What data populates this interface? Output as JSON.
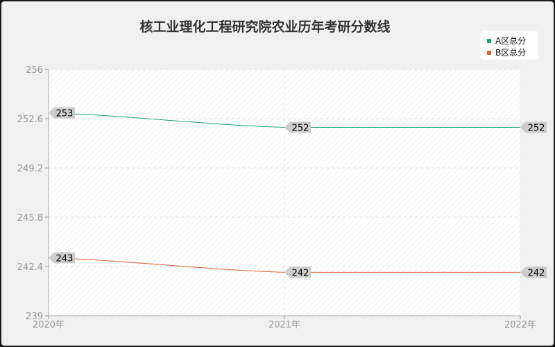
{
  "chart_data": {
    "type": "line",
    "title": "核工业理化工程研究院农业历年考研分数线",
    "categories": [
      "2020年",
      "2021年",
      "2022年"
    ],
    "series": [
      {
        "name": "A区总分",
        "values": [
          253,
          252,
          252
        ],
        "color": "#1aa57a"
      },
      {
        "name": "B区总分",
        "values": [
          243,
          242,
          242
        ],
        "color": "#e0622e"
      }
    ],
    "ylim": [
      239,
      256
    ],
    "yticks": [
      "239",
      "242.4",
      "245.8",
      "249.2",
      "252.6",
      "256"
    ],
    "grid": true,
    "legend": "top-right"
  }
}
